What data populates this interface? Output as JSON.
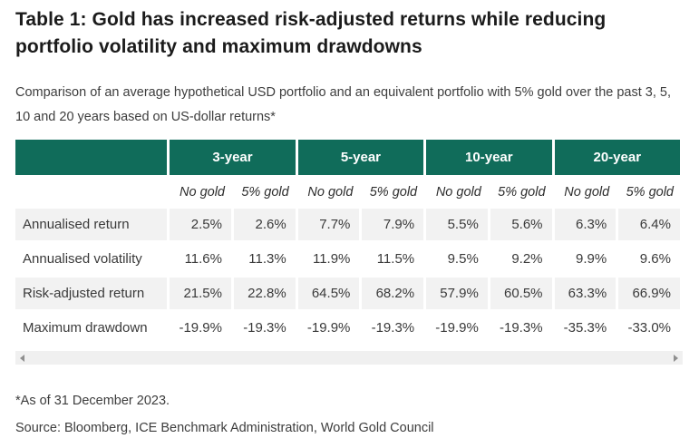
{
  "colors": {
    "header_green": "#106c5a",
    "row_stripe": "#f2f2f2",
    "header_text": "#ffffff",
    "body_text": "#3a3a3a",
    "title_text": "#1b1b1b"
  },
  "scrollbar": {
    "orientation": "horizontal",
    "left_arrow": "left-arrow",
    "right_arrow": "right-arrow"
  },
  "chart_data": {
    "type": "table",
    "title": "Table 1: Gold has increased risk-adjusted returns while reducing portfolio volatility and maximum drawdowns",
    "subtitle": "Comparison of an average hypothetical USD portfolio and an equivalent portfolio with 5% gold over the past 3, 5, 10 and 20 years based on US-dollar returns*",
    "unit": "%",
    "group_headers": [
      "3-year",
      "5-year",
      "10-year",
      "20-year"
    ],
    "sub_headers": [
      "No gold",
      "5% gold",
      "No gold",
      "5% gold",
      "No gold",
      "5% gold",
      "No gold",
      "5% gold"
    ],
    "rows": [
      {
        "label": "Annualised return",
        "values": [
          "2.5%",
          "2.6%",
          "7.7%",
          "7.9%",
          "5.5%",
          "5.6%",
          "6.3%",
          "6.4%"
        ]
      },
      {
        "label": "Annualised volatility",
        "values": [
          "11.6%",
          "11.3%",
          "11.9%",
          "11.5%",
          "9.5%",
          "9.2%",
          "9.9%",
          "9.6%"
        ]
      },
      {
        "label": "Risk-adjusted return",
        "values": [
          "21.5%",
          "22.8%",
          "64.5%",
          "68.2%",
          "57.9%",
          "60.5%",
          "63.3%",
          "66.9%"
        ]
      },
      {
        "label": "Maximum drawdown",
        "values": [
          "-19.9%",
          "-19.3%",
          "-19.9%",
          "-19.3%",
          "-19.9%",
          "-19.3%",
          "-35.3%",
          "-33.0%"
        ]
      }
    ],
    "footnote": "*As of 31 December 2023.",
    "source": "Source: Bloomberg, ICE Benchmark Administration, World Gold Council"
  }
}
